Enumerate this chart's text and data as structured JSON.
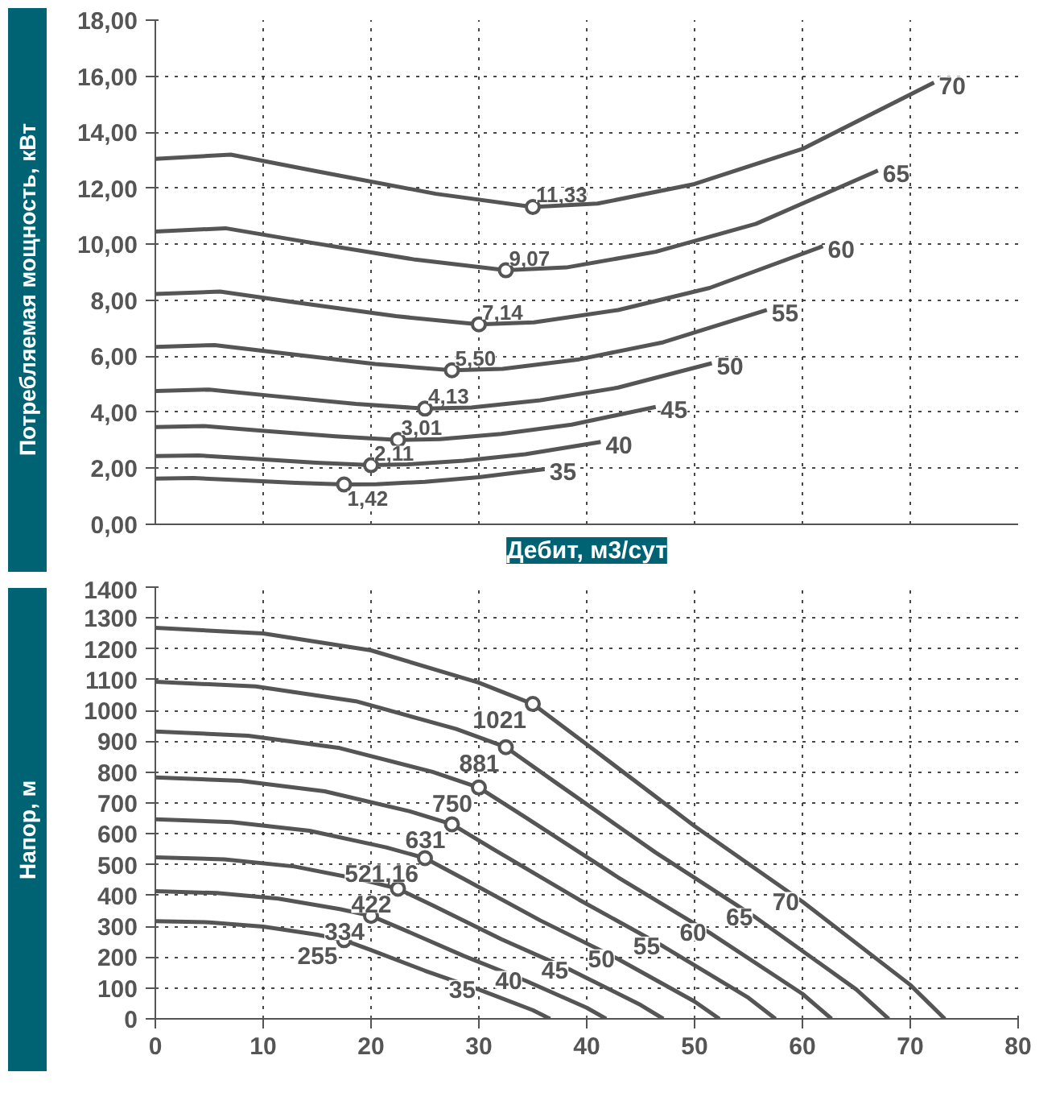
{
  "chart_data": [
    {
      "type": "line",
      "ylabel": "Потребляемая мощность, кВт",
      "xlabel": "Дебит, м3/сут",
      "xlim": [
        0,
        80
      ],
      "xticks": [
        0,
        10,
        20,
        30,
        40,
        50,
        60,
        70,
        80
      ],
      "ylim": [
        0,
        18
      ],
      "yticks": [
        {
          "value": 0,
          "label": "0,00"
        },
        {
          "value": 2,
          "label": "2,00"
        },
        {
          "value": 4,
          "label": "4,00"
        },
        {
          "value": 6,
          "label": "6,00"
        },
        {
          "value": 8,
          "label": "8,00"
        },
        {
          "value": 10,
          "label": "10,00"
        },
        {
          "value": 12,
          "label": "12,00"
        },
        {
          "value": 14,
          "label": "14,00"
        },
        {
          "value": 16,
          "label": "16,00"
        },
        {
          "value": 18,
          "label": "18,00"
        }
      ],
      "tick_labels": "y",
      "grid": true,
      "line_style": "solid",
      "series": [
        {
          "name": "35",
          "color": "#555555",
          "x": [
            0,
            3.5,
            7.5,
            13,
            17.5,
            20.5,
            25,
            30,
            36.1
          ],
          "values": [
            1.63,
            1.65,
            1.58,
            1.48,
            1.42,
            1.43,
            1.52,
            1.68,
            1.97
          ]
        },
        {
          "name": "40",
          "color": "#555555",
          "x": [
            0,
            4,
            8.6,
            14.9,
            20,
            23.4,
            28.6,
            34.3,
            41.3
          ],
          "values": [
            2.44,
            2.46,
            2.35,
            2.2,
            2.11,
            2.14,
            2.27,
            2.5,
            2.94
          ]
        },
        {
          "name": "45",
          "color": "#555555",
          "x": [
            0,
            4.5,
            9.6,
            16.7,
            22.5,
            26.4,
            32.1,
            38.6,
            46.4
          ],
          "values": [
            3.47,
            3.51,
            3.35,
            3.14,
            3.01,
            3.04,
            3.23,
            3.56,
            4.19
          ]
        },
        {
          "name": "50",
          "color": "#555555",
          "x": [
            0,
            5,
            10.7,
            18.6,
            25,
            29.3,
            35.7,
            42.9,
            51.6
          ],
          "values": [
            4.76,
            4.81,
            4.59,
            4.3,
            4.13,
            4.17,
            4.43,
            4.88,
            5.75
          ]
        },
        {
          "name": "55",
          "color": "#555555",
          "x": [
            0,
            5.5,
            11.8,
            20.4,
            27.5,
            32.2,
            39.3,
            47.1,
            56.7
          ],
          "values": [
            6.33,
            6.4,
            6.11,
            5.72,
            5.5,
            5.55,
            5.89,
            6.5,
            7.65
          ]
        },
        {
          "name": "60",
          "color": "#555555",
          "x": [
            0,
            6,
            12.9,
            22.3,
            30,
            35.1,
            42.9,
            51.4,
            61.9
          ],
          "values": [
            8.22,
            8.31,
            7.93,
            7.43,
            7.14,
            7.21,
            7.65,
            8.44,
            9.93
          ]
        },
        {
          "name": "65",
          "color": "#555555",
          "x": [
            0,
            6.5,
            13.9,
            24.1,
            32.5,
            38.1,
            46.4,
            55.7,
            67.0
          ],
          "values": [
            10.45,
            10.57,
            10.09,
            9.45,
            9.07,
            9.17,
            9.73,
            10.73,
            12.63
          ]
        },
        {
          "name": "70",
          "color": "#555555",
          "x": [
            0,
            7,
            15,
            26,
            35,
            41,
            50,
            60,
            72.2
          ],
          "values": [
            13.05,
            13.2,
            12.6,
            11.8,
            11.33,
            11.45,
            12.15,
            13.4,
            15.77
          ]
        },
        {
          "type": "scatter",
          "marker": "circle",
          "color": "#555555",
          "x": [
            17.5,
            20,
            22.5,
            25,
            27.5,
            30,
            32.5,
            35
          ],
          "values": [
            1.42,
            2.11,
            3.01,
            4.13,
            5.5,
            7.14,
            9.07,
            11.33
          ],
          "value_labels": [
            "1,42",
            "2,11",
            "3,01",
            "4,13",
            "5,50",
            "7,14",
            "9,07",
            "11,33"
          ]
        }
      ]
    },
    {
      "type": "line",
      "ylabel": "Напор, м",
      "xlim": [
        0,
        80
      ],
      "xticks": [
        0,
        10,
        20,
        30,
        40,
        50,
        60,
        70,
        80
      ],
      "ylim": [
        0,
        1400
      ],
      "yticks": [
        0,
        100,
        200,
        300,
        400,
        500,
        600,
        700,
        800,
        900,
        1000,
        1100,
        1200,
        1300,
        1400
      ],
      "grid": true,
      "line_style": "solid",
      "series": [
        {
          "name": "35",
          "color": "#555555",
          "x": [
            0,
            5,
            10,
            15,
            17.5,
            20,
            25,
            30,
            35,
            36.6
          ],
          "values": [
            317,
            313,
            299,
            273,
            255,
            223,
            156,
            95,
            28,
            0
          ]
        },
        {
          "name": "40",
          "color": "#555555",
          "x": [
            0,
            5.7,
            11.4,
            17.1,
            20,
            22.9,
            28.6,
            34.3,
            40,
            41.8
          ],
          "values": [
            414,
            408,
            390,
            356,
            334,
            291,
            204,
            124,
            36,
            0
          ]
        },
        {
          "name": "45",
          "color": "#555555",
          "x": [
            0,
            6.4,
            12.9,
            19.3,
            22.5,
            25.7,
            32.1,
            38.6,
            45,
            47.1
          ],
          "values": [
            524,
            517,
            494,
            450,
            422,
            368,
            258,
            157,
            45,
            0
          ]
        },
        {
          "name": "50",
          "color": "#555555",
          "x": [
            0,
            7.1,
            14.3,
            21.4,
            25,
            28.6,
            35.7,
            42.9,
            50,
            52.3
          ],
          "values": [
            647,
            638,
            610,
            556,
            521.16,
            454,
            319,
            194,
            56,
            0
          ]
        },
        {
          "name": "55",
          "color": "#555555",
          "x": [
            0,
            7.9,
            15.7,
            23.6,
            27.5,
            31.4,
            39.3,
            47.1,
            55,
            57.5
          ],
          "values": [
            783,
            772,
            738,
            673,
            631,
            549,
            386,
            235,
            68,
            0
          ]
        },
        {
          "name": "60",
          "color": "#555555",
          "x": [
            0,
            8.6,
            17.1,
            25.7,
            30,
            34.3,
            42.9,
            51.4,
            60,
            62.7
          ],
          "values": [
            932,
            918,
            878,
            801,
            750,
            654,
            459,
            279,
            81,
            0
          ]
        },
        {
          "name": "65",
          "color": "#555555",
          "x": [
            0,
            9.3,
            18.6,
            27.9,
            32.5,
            37.1,
            46.4,
            55.7,
            65,
            68.0
          ],
          "values": [
            1093,
            1078,
            1030,
            940,
            881,
            767,
            539,
            328,
            95,
            0
          ]
        },
        {
          "name": "70",
          "color": "#555555",
          "x": [
            0,
            10,
            20,
            30,
            35,
            40,
            50,
            60,
            70,
            73.2
          ],
          "values": [
            1268,
            1250,
            1195,
            1090,
            1021,
            890,
            625,
            380,
            110,
            0
          ]
        },
        {
          "type": "scatter",
          "marker": "circle",
          "color": "#555555",
          "x": [
            17.5,
            20,
            22.5,
            25,
            27.5,
            30,
            32.5,
            35
          ],
          "values": [
            255,
            334,
            422,
            521.16,
            631,
            750,
            881,
            1021
          ],
          "value_labels": [
            "255",
            "334",
            "422",
            "521,16",
            "631",
            "750",
            "881",
            "1021"
          ]
        }
      ]
    }
  ]
}
